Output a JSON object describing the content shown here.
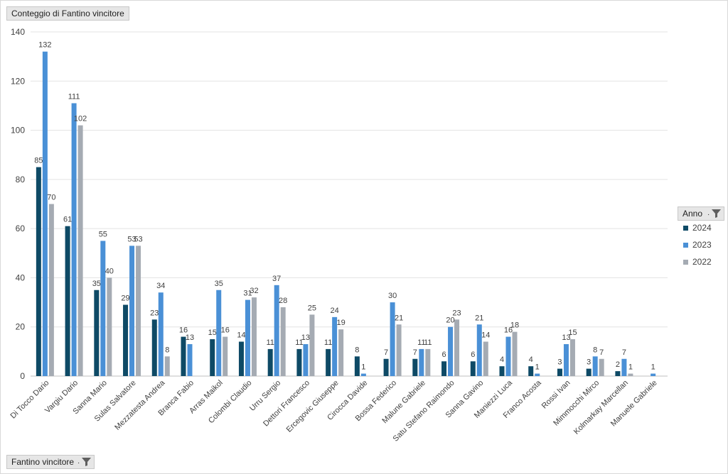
{
  "value_field": {
    "label": "Conteggio di Fantino vincitore"
  },
  "axis_field": {
    "label": "Fantino vincitore",
    "filter_icon": "filter-dropdown-icon"
  },
  "legend_field": {
    "label": "Anno",
    "filter_icon": "filter-dropdown-icon"
  },
  "chart_data": {
    "type": "bar",
    "title": "",
    "xlabel": "",
    "ylabel": "",
    "ylim": [
      0,
      140
    ],
    "yticks": [
      0,
      20,
      40,
      60,
      80,
      100,
      120,
      140
    ],
    "grid": true,
    "legend_position": "right",
    "categories": [
      "Di Tocco Dario",
      "Vargiu Dario",
      "Sanna Mario",
      "Sulas Salvatore",
      "Mezzatesta Andrea",
      "Branca Fabio",
      "Arras Maikol",
      "Colombi Claudio",
      "Urru Sergio",
      "Dettori Francesco",
      "Ercegovic Giuseppe",
      "Cirocca Davide",
      "Bossa Federico",
      "Malune Gabriele",
      "Satu Stefano Raimondo",
      "Sanna Gavino",
      "Maniezzi Luca",
      "Franco Acosta",
      "Rossi Ivan",
      "Mimmocchi Mirco",
      "Kolmarkay Marcellan",
      "Manuele Gabriele"
    ],
    "series": [
      {
        "name": "2024",
        "color": "#0e4a66",
        "values": [
          85,
          61,
          35,
          29,
          23,
          16,
          15,
          14,
          11,
          11,
          11,
          8,
          7,
          7,
          6,
          6,
          4,
          4,
          3,
          3,
          2,
          null
        ]
      },
      {
        "name": "2023",
        "color": "#4a90d6",
        "values": [
          132,
          111,
          55,
          53,
          34,
          13,
          35,
          31,
          37,
          13,
          24,
          1,
          30,
          11,
          20,
          21,
          16,
          1,
          13,
          8,
          7,
          1
        ]
      },
      {
        "name": "2022",
        "color": "#a5abb3",
        "values": [
          70,
          102,
          40,
          53,
          8,
          null,
          16,
          32,
          28,
          25,
          19,
          null,
          21,
          11,
          23,
          14,
          18,
          null,
          15,
          7,
          1,
          null
        ]
      }
    ]
  }
}
